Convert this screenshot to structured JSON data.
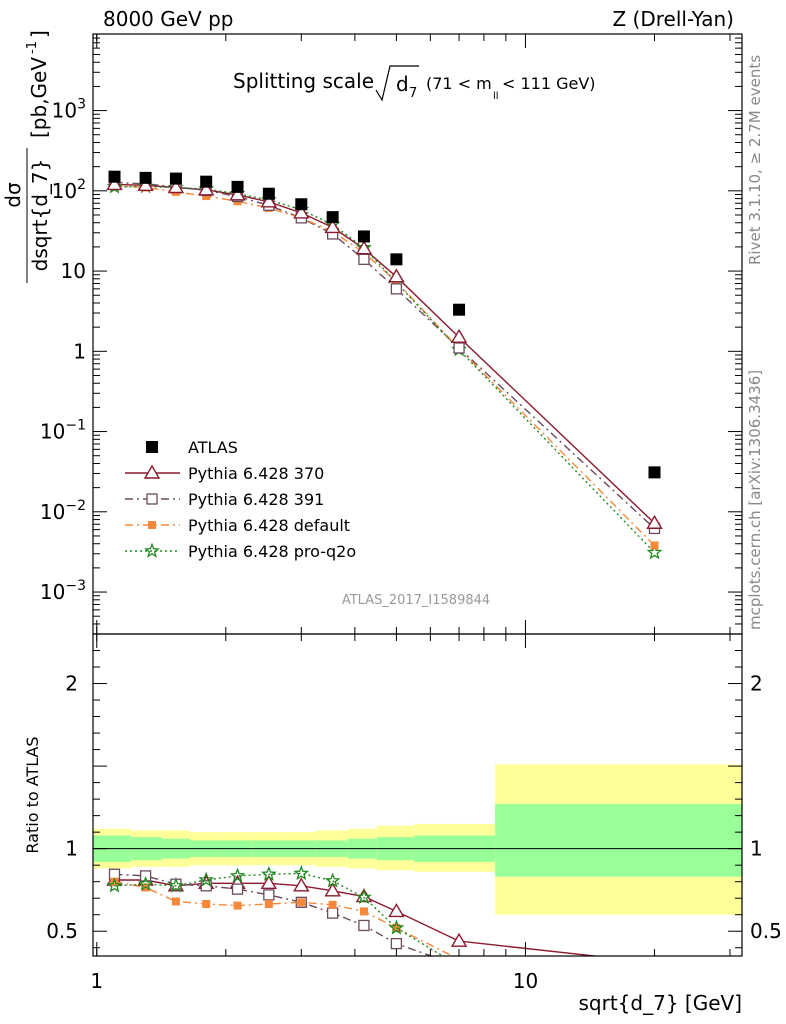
{
  "header": {
    "left": "8000 GeV pp",
    "right": "Z (Drell-Yan)"
  },
  "plot_title": {
    "main": "Splitting scale",
    "sym": "d",
    "sub": "7",
    "range": "(71 < m",
    "range_sub": "ll",
    "range_end": " < 111 GeV)"
  },
  "side_labels": {
    "rivet": "Rivet 3.1.10, ≥ 2.7M events",
    "mcplots": "mcplots.cern.ch [arXiv:1306.3436]"
  },
  "watermark": "ATLAS_2017_I1589844",
  "y_axis_label": {
    "num": "dσ",
    "den": "dsqrt{d_7}",
    "units": "[pb,GeV",
    "units_sup": "-1",
    "units_end": "]"
  },
  "ratio_axis_label": "Ratio to ATLAS",
  "x_axis_label": "sqrt{d_7} [GeV]",
  "colors": {
    "atlas": "#000000",
    "p370": "#8b1a2e",
    "p391": "#6b4a5e",
    "pdefault": "#f5883a",
    "pq2o": "#1e8a1e",
    "band_outer": "#ffff99",
    "band_inner": "#99ff99"
  },
  "chart_data": {
    "type": "scatter",
    "x_scale": "log",
    "xlim": [
      0.98,
      32
    ],
    "main_panel": {
      "y_scale": "log",
      "ylim": [
        0.0003,
        9000
      ],
      "y_ticks": [
        {
          "value": 0.001,
          "label": "10",
          "sup": "−3"
        },
        {
          "value": 0.01,
          "label": "10",
          "sup": "−2"
        },
        {
          "value": 0.1,
          "label": "10",
          "sup": "−1"
        },
        {
          "value": 1,
          "label": "1",
          "sup": ""
        },
        {
          "value": 10,
          "label": "10",
          "sup": ""
        },
        {
          "value": 100,
          "label": "10",
          "sup": "2"
        },
        {
          "value": 1000,
          "label": "10",
          "sup": "3"
        }
      ]
    },
    "ratio_panel": {
      "ylim": [
        0.35,
        2.3
      ],
      "y_ticks": [
        {
          "value": 0.5,
          "label": "0.5"
        },
        {
          "value": 1,
          "label": "1"
        },
        {
          "value": 2,
          "label": "2"
        }
      ]
    },
    "x_ticks": [
      {
        "value": 1,
        "label": "1"
      },
      {
        "value": 10,
        "label": "10"
      }
    ],
    "x": [
      1.1,
      1.3,
      1.53,
      1.8,
      2.13,
      2.52,
      3.0,
      3.55,
      4.2,
      5.0,
      7.0,
      20.0
    ],
    "series": [
      {
        "name": "ATLAS",
        "key": "atlas",
        "marker": "square",
        "values": [
          150,
          145,
          142,
          130,
          112,
          92,
          68,
          47,
          27,
          14,
          3.3,
          0.031
        ]
      },
      {
        "name": "Pythia 6.428 370",
        "key": "p370",
        "marker": "triangle",
        "line": "solid",
        "values": [
          120,
          117,
          110,
          103,
          89,
          73,
          53,
          35,
          19,
          8.5,
          1.5,
          0.0072
        ],
        "ratio": [
          0.81,
          0.81,
          0.775,
          0.79,
          0.79,
          0.79,
          0.775,
          0.745,
          0.71,
          0.62,
          0.44,
          0.31
        ]
      },
      {
        "name": "Pythia 6.428 391",
        "key": "p391",
        "marker": "open-square",
        "line": "dashdot",
        "values": [
          127,
          122,
          112,
          101,
          85,
          66,
          46,
          29,
          14,
          6.0,
          1.1,
          0.0062
        ],
        "ratio": [
          0.845,
          0.835,
          0.785,
          0.775,
          0.755,
          0.72,
          0.675,
          0.61,
          0.535,
          0.425,
          0.29,
          0.2
        ]
      },
      {
        "name": "Pythia 6.428 default",
        "key": "pdefault",
        "marker": "filled-square",
        "line": "dashdot",
        "values": [
          115,
          110,
          97,
          86,
          74,
          61,
          46,
          31,
          17,
          7.4,
          1.08,
          0.0038
        ],
        "ratio": [
          0.8,
          0.765,
          0.68,
          0.665,
          0.655,
          0.665,
          0.675,
          0.66,
          0.62,
          0.52,
          0.33,
          0.12
        ]
      },
      {
        "name": "Pythia 6.428 pro-q2o",
        "key": "pq2o",
        "marker": "star",
        "line": "dotted",
        "values": [
          112,
          113,
          110,
          105,
          92,
          77,
          58,
          38,
          19.5,
          7.2,
          1.05,
          0.0031
        ],
        "ratio": [
          0.775,
          0.785,
          0.775,
          0.81,
          0.835,
          0.845,
          0.85,
          0.805,
          0.705,
          0.52,
          0.29,
          0.1
        ]
      }
    ],
    "uncertainty_bands": {
      "edges": [
        0.98,
        1.2,
        1.42,
        1.65,
        1.95,
        2.3,
        2.72,
        3.25,
        3.85,
        4.5,
        5.5,
        8.5,
        32
      ],
      "inner": [
        [
          0.92,
          1.08
        ],
        [
          0.93,
          1.07
        ],
        [
          0.94,
          1.06
        ],
        [
          0.95,
          1.05
        ],
        [
          0.95,
          1.05
        ],
        [
          0.95,
          1.05
        ],
        [
          0.95,
          1.05
        ],
        [
          0.95,
          1.05
        ],
        [
          0.94,
          1.06
        ],
        [
          0.93,
          1.07
        ],
        [
          0.92,
          1.08
        ],
        [
          0.83,
          1.27
        ]
      ],
      "outer": [
        [
          0.88,
          1.12
        ],
        [
          0.89,
          1.11
        ],
        [
          0.89,
          1.11
        ],
        [
          0.9,
          1.1
        ],
        [
          0.9,
          1.1
        ],
        [
          0.9,
          1.1
        ],
        [
          0.9,
          1.1
        ],
        [
          0.89,
          1.11
        ],
        [
          0.88,
          1.12
        ],
        [
          0.87,
          1.14
        ],
        [
          0.86,
          1.15
        ],
        [
          0.6,
          1.51
        ]
      ]
    }
  }
}
